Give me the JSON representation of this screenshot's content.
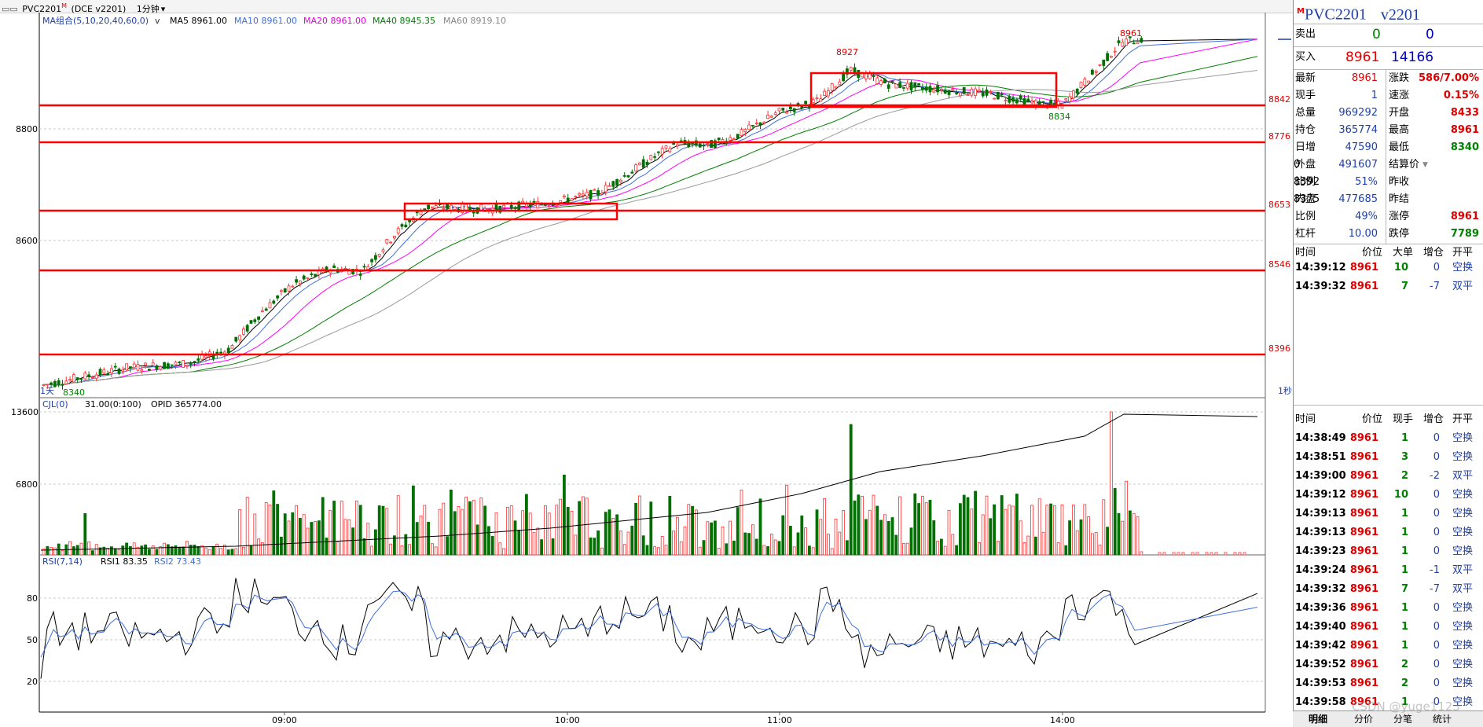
{
  "header": {
    "symbol_tag": "PVC2201",
    "superscript": "M",
    "exchange": "(DCE v2201)",
    "period": "1分钟",
    "period_arrow": "▾"
  },
  "ma_legend": {
    "group": "MA组合(5,10,20,40,60,0)",
    "ma5": "MA5 8961.00",
    "ma10": "MA10 8961.00",
    "ma20": "MA20 8961.00",
    "ma40": "MA40 8945.35",
    "ma60": "MA60 8919.10"
  },
  "vol_legend": {
    "label": "CJL(0)",
    "value": "31.00(0:100)",
    "opid": "OPID 365774.00"
  },
  "rsi_legend": {
    "label": "RSI(7,14)",
    "rsi1": "RSI1 83.35",
    "rsi2": "RSI2 73.43"
  },
  "price_axis": [
    "8800",
    "8600"
  ],
  "vol_axis": [
    "13600",
    "6800"
  ],
  "rsi_axis": [
    "80",
    "50",
    "20"
  ],
  "time_axis": [
    "09:00",
    "10:00",
    "11:00",
    "14:00"
  ],
  "hlines": [
    "8842",
    "8776",
    "8653",
    "8546",
    "8396"
  ],
  "annotations": {
    "high1": "8927",
    "high2": "8961",
    "low_main": "8834",
    "low_day": "8340",
    "day_label": "1天",
    "sec_label": "1秒"
  },
  "colors": {
    "up": "#ff3030",
    "down": "#007000",
    "ma5": "#000000",
    "ma10": "#3d6fe0",
    "ma20": "#ff00ff",
    "ma40": "#008000",
    "ma60": "#9a9a9a",
    "hline": "#ff0000"
  },
  "quote": {
    "name": "PVC2201",
    "code": "v2201",
    "marker": "M",
    "sell_label": "卖出",
    "sell_price": "0",
    "sell_qty": "0",
    "buy_label": "买入",
    "buy_price": "8961",
    "buy_qty": "14166",
    "rows": [
      {
        "l1": "最新",
        "v1": "8961",
        "l2": "涨跌",
        "v2": "586/7.00%"
      },
      {
        "l1": "现手",
        "v1": "1",
        "l2": "速涨",
        "v2": "0.15%"
      },
      {
        "l1": "总量",
        "v1": "969292",
        "l2": "开盘",
        "v2": "8433"
      },
      {
        "l1": "持仓",
        "v1": "365774",
        "l2": "最高",
        "v2": "8961"
      },
      {
        "l1": "日增",
        "v1": "47590",
        "l2": "最低",
        "v2": "8340"
      },
      {
        "l1": "外盘",
        "v1": "491607",
        "l2": "结算价",
        "v2": "0"
      },
      {
        "l1": "比例",
        "v1": "51%",
        "l2": "昨收",
        "v2": "8392"
      },
      {
        "l1": "内盘",
        "v1": "477685",
        "l2": "昨结",
        "v2": "8375"
      },
      {
        "l1": "比例",
        "v1": "49%",
        "l2": "涨停",
        "v2": "8961"
      },
      {
        "l1": "杠杆",
        "v1": "10.00",
        "l2": "跌停",
        "v2": "7789"
      }
    ]
  },
  "big_orders": {
    "headers": [
      "时间",
      "价位",
      "大单",
      "增仓",
      "开平"
    ],
    "rows": [
      [
        "14:39:12",
        "8961",
        "10",
        "0",
        "空换"
      ],
      [
        "14:39:32",
        "8961",
        "7",
        "-7",
        "双平"
      ]
    ]
  },
  "ticks": {
    "headers": [
      "时间",
      "价位",
      "现手",
      "增仓",
      "开平"
    ],
    "rows": [
      [
        "14:38:49",
        "8961",
        "1",
        "0",
        "空换"
      ],
      [
        "14:38:51",
        "8961",
        "3",
        "0",
        "空换"
      ],
      [
        "14:39:00",
        "8961",
        "2",
        "-2",
        "双平"
      ],
      [
        "14:39:12",
        "8961",
        "10",
        "0",
        "空换"
      ],
      [
        "14:39:13",
        "8961",
        "1",
        "0",
        "空换"
      ],
      [
        "14:39:13",
        "8961",
        "1",
        "0",
        "空换"
      ],
      [
        "14:39:23",
        "8961",
        "1",
        "0",
        "空换"
      ],
      [
        "14:39:24",
        "8961",
        "1",
        "-1",
        "双平"
      ],
      [
        "14:39:32",
        "8961",
        "7",
        "-7",
        "双平"
      ],
      [
        "14:39:36",
        "8961",
        "1",
        "0",
        "空换"
      ],
      [
        "14:39:40",
        "8961",
        "1",
        "0",
        "空换"
      ],
      [
        "14:39:42",
        "8961",
        "1",
        "0",
        "空换"
      ],
      [
        "14:39:52",
        "8961",
        "2",
        "0",
        "空换"
      ],
      [
        "14:39:53",
        "8961",
        "2",
        "0",
        "空换"
      ],
      [
        "14:39:58",
        "8961",
        "1",
        "0",
        "空换"
      ]
    ]
  },
  "tabs": [
    "明细",
    "分价",
    "分笔",
    "统计"
  ],
  "watermark": "CSDN @yuge1123"
}
